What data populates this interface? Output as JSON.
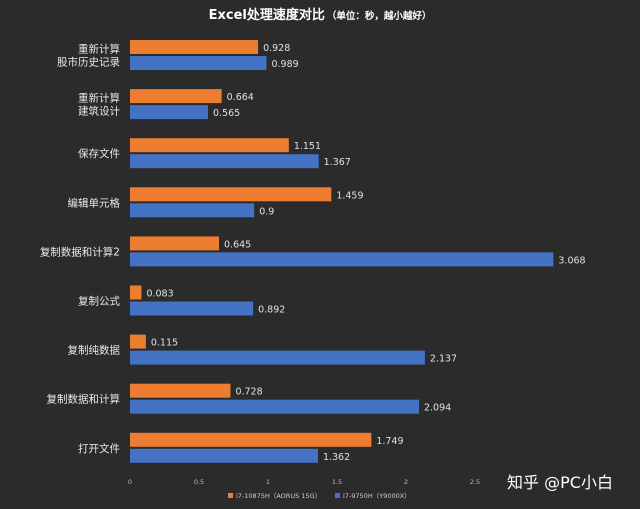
{
  "chart_data": {
    "type": "bar",
    "orientation": "horizontal",
    "title": "Excel处理速度对比",
    "subtitle": "（单位：秒，越小越好）",
    "categories": [
      [
        "重新计算",
        "股市历史记录"
      ],
      [
        "重新计算",
        "建筑设计"
      ],
      [
        "保存文件"
      ],
      [
        "编辑单元格"
      ],
      [
        "复制数据和计算2"
      ],
      [
        "复制公式"
      ],
      [
        "复制纯数据"
      ],
      [
        "复制数据和计算"
      ],
      [
        "打开文件"
      ]
    ],
    "series": [
      {
        "name": "i7-10875H（AORUS 15G）",
        "color": "#ed7d31",
        "values": [
          0.928,
          0.664,
          1.151,
          1.459,
          0.645,
          0.083,
          0.115,
          0.728,
          1.749
        ],
        "labels": [
          "0.928",
          "0.664",
          "1.151",
          "1.459",
          "0.645",
          "0.083",
          "0.115",
          "0.728",
          "1.749"
        ]
      },
      {
        "name": "i7-9750H（Y9000X）",
        "color": "#4472c4",
        "values": [
          0.989,
          0.565,
          1.367,
          0.9,
          3.068,
          0.892,
          2.137,
          2.094,
          1.362
        ],
        "labels": [
          "0.989",
          "0.565",
          "1.367",
          "0.9",
          "3.068",
          "0.892",
          "2.137",
          "2.094",
          "1.362"
        ]
      }
    ],
    "xlim": [
      0,
      3.5
    ],
    "xticks": [
      0,
      0.5,
      1,
      1.5,
      2,
      2.5
    ],
    "xtick_labels": [
      "0",
      "0.5",
      "1",
      "1.5",
      "2",
      "2.5"
    ],
    "xlabel": "",
    "ylabel": "",
    "grid": false,
    "legend_position": "bottom"
  },
  "watermark": "知乎 @PC小白",
  "colors": {
    "background": "#2b2b2b",
    "text": "#e6e6e6"
  }
}
